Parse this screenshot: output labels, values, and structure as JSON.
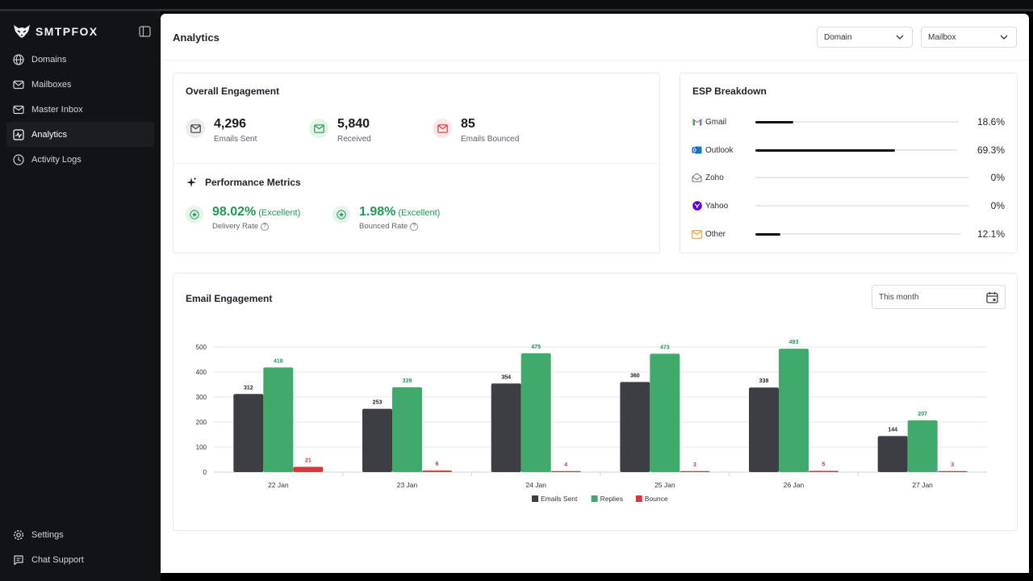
{
  "app": {
    "brand": "SMTPFOX",
    "nav": [
      {
        "label": "Domains",
        "icon": "globe-icon"
      },
      {
        "label": "Mailboxes",
        "icon": "mail-icon"
      },
      {
        "label": "Master Inbox",
        "icon": "inbox-icon"
      },
      {
        "label": "Analytics",
        "icon": "analytics-icon",
        "active": true
      },
      {
        "label": "Activity Logs",
        "icon": "clock-icon"
      }
    ],
    "nav_bottom": [
      {
        "label": "Settings",
        "icon": "gear-icon"
      },
      {
        "label": "Chat Support",
        "icon": "chat-icon"
      }
    ]
  },
  "header": {
    "title": "Analytics",
    "filters": [
      {
        "label": "Domain"
      },
      {
        "label": "Mailbox"
      }
    ]
  },
  "overall": {
    "title": "Overall Engagement",
    "stats": [
      {
        "value": "4,296",
        "label": "Emails Sent"
      },
      {
        "value": "5,840",
        "label": "Received"
      },
      {
        "value": "85",
        "label": "Emails Bounced"
      }
    ],
    "performance_title": "Performance Metrics",
    "metrics": [
      {
        "value": "98.02%",
        "rating": "(Excellent)",
        "label": "Delivery Rate"
      },
      {
        "value": "1.98%",
        "rating": "(Excellent)",
        "label": "Bounced Rate"
      }
    ]
  },
  "esp": {
    "title": "ESP Breakdown",
    "items": [
      {
        "name": "Gmail",
        "percent": "18.6%",
        "value": 18.6,
        "icon": "gmail-icon"
      },
      {
        "name": "Outlook",
        "percent": "69.3%",
        "value": 69.3,
        "icon": "outlook-icon"
      },
      {
        "name": "Zoho",
        "percent": "0%",
        "value": 0,
        "icon": "zoho-icon"
      },
      {
        "name": "Yahoo",
        "percent": "0%",
        "value": 0,
        "icon": "yahoo-icon"
      },
      {
        "name": "Other",
        "percent": "12.1%",
        "value": 12.1,
        "icon": "envelope-icon"
      }
    ]
  },
  "engagement": {
    "title": "Email Engagement",
    "date_range": "This month"
  },
  "chart_data": {
    "type": "bar",
    "title": "Email Engagement",
    "categories": [
      "22 Jan",
      "23 Jan",
      "24 Jan",
      "25 Jan",
      "26 Jan",
      "27 Jan"
    ],
    "series": [
      {
        "name": "Emails Sent",
        "color": "#3b3e43",
        "label_color": "#1f2328",
        "values": [
          312,
          253,
          354,
          360,
          338,
          144
        ]
      },
      {
        "name": "Replies",
        "color": "#3faa6b",
        "label_color": "#1f9a55",
        "values": [
          418,
          339,
          475,
          473,
          493,
          207
        ]
      },
      {
        "name": "Bounce",
        "color": "#d9363e",
        "label_color": "#d9363e",
        "values": [
          21,
          6,
          4,
          3,
          5,
          3
        ]
      }
    ],
    "ylim": [
      0,
      500
    ],
    "yticks": [
      0,
      100,
      200,
      300,
      400,
      500
    ],
    "legend": "bottom-center",
    "grid": true,
    "xlabel": "",
    "ylabel": ""
  }
}
